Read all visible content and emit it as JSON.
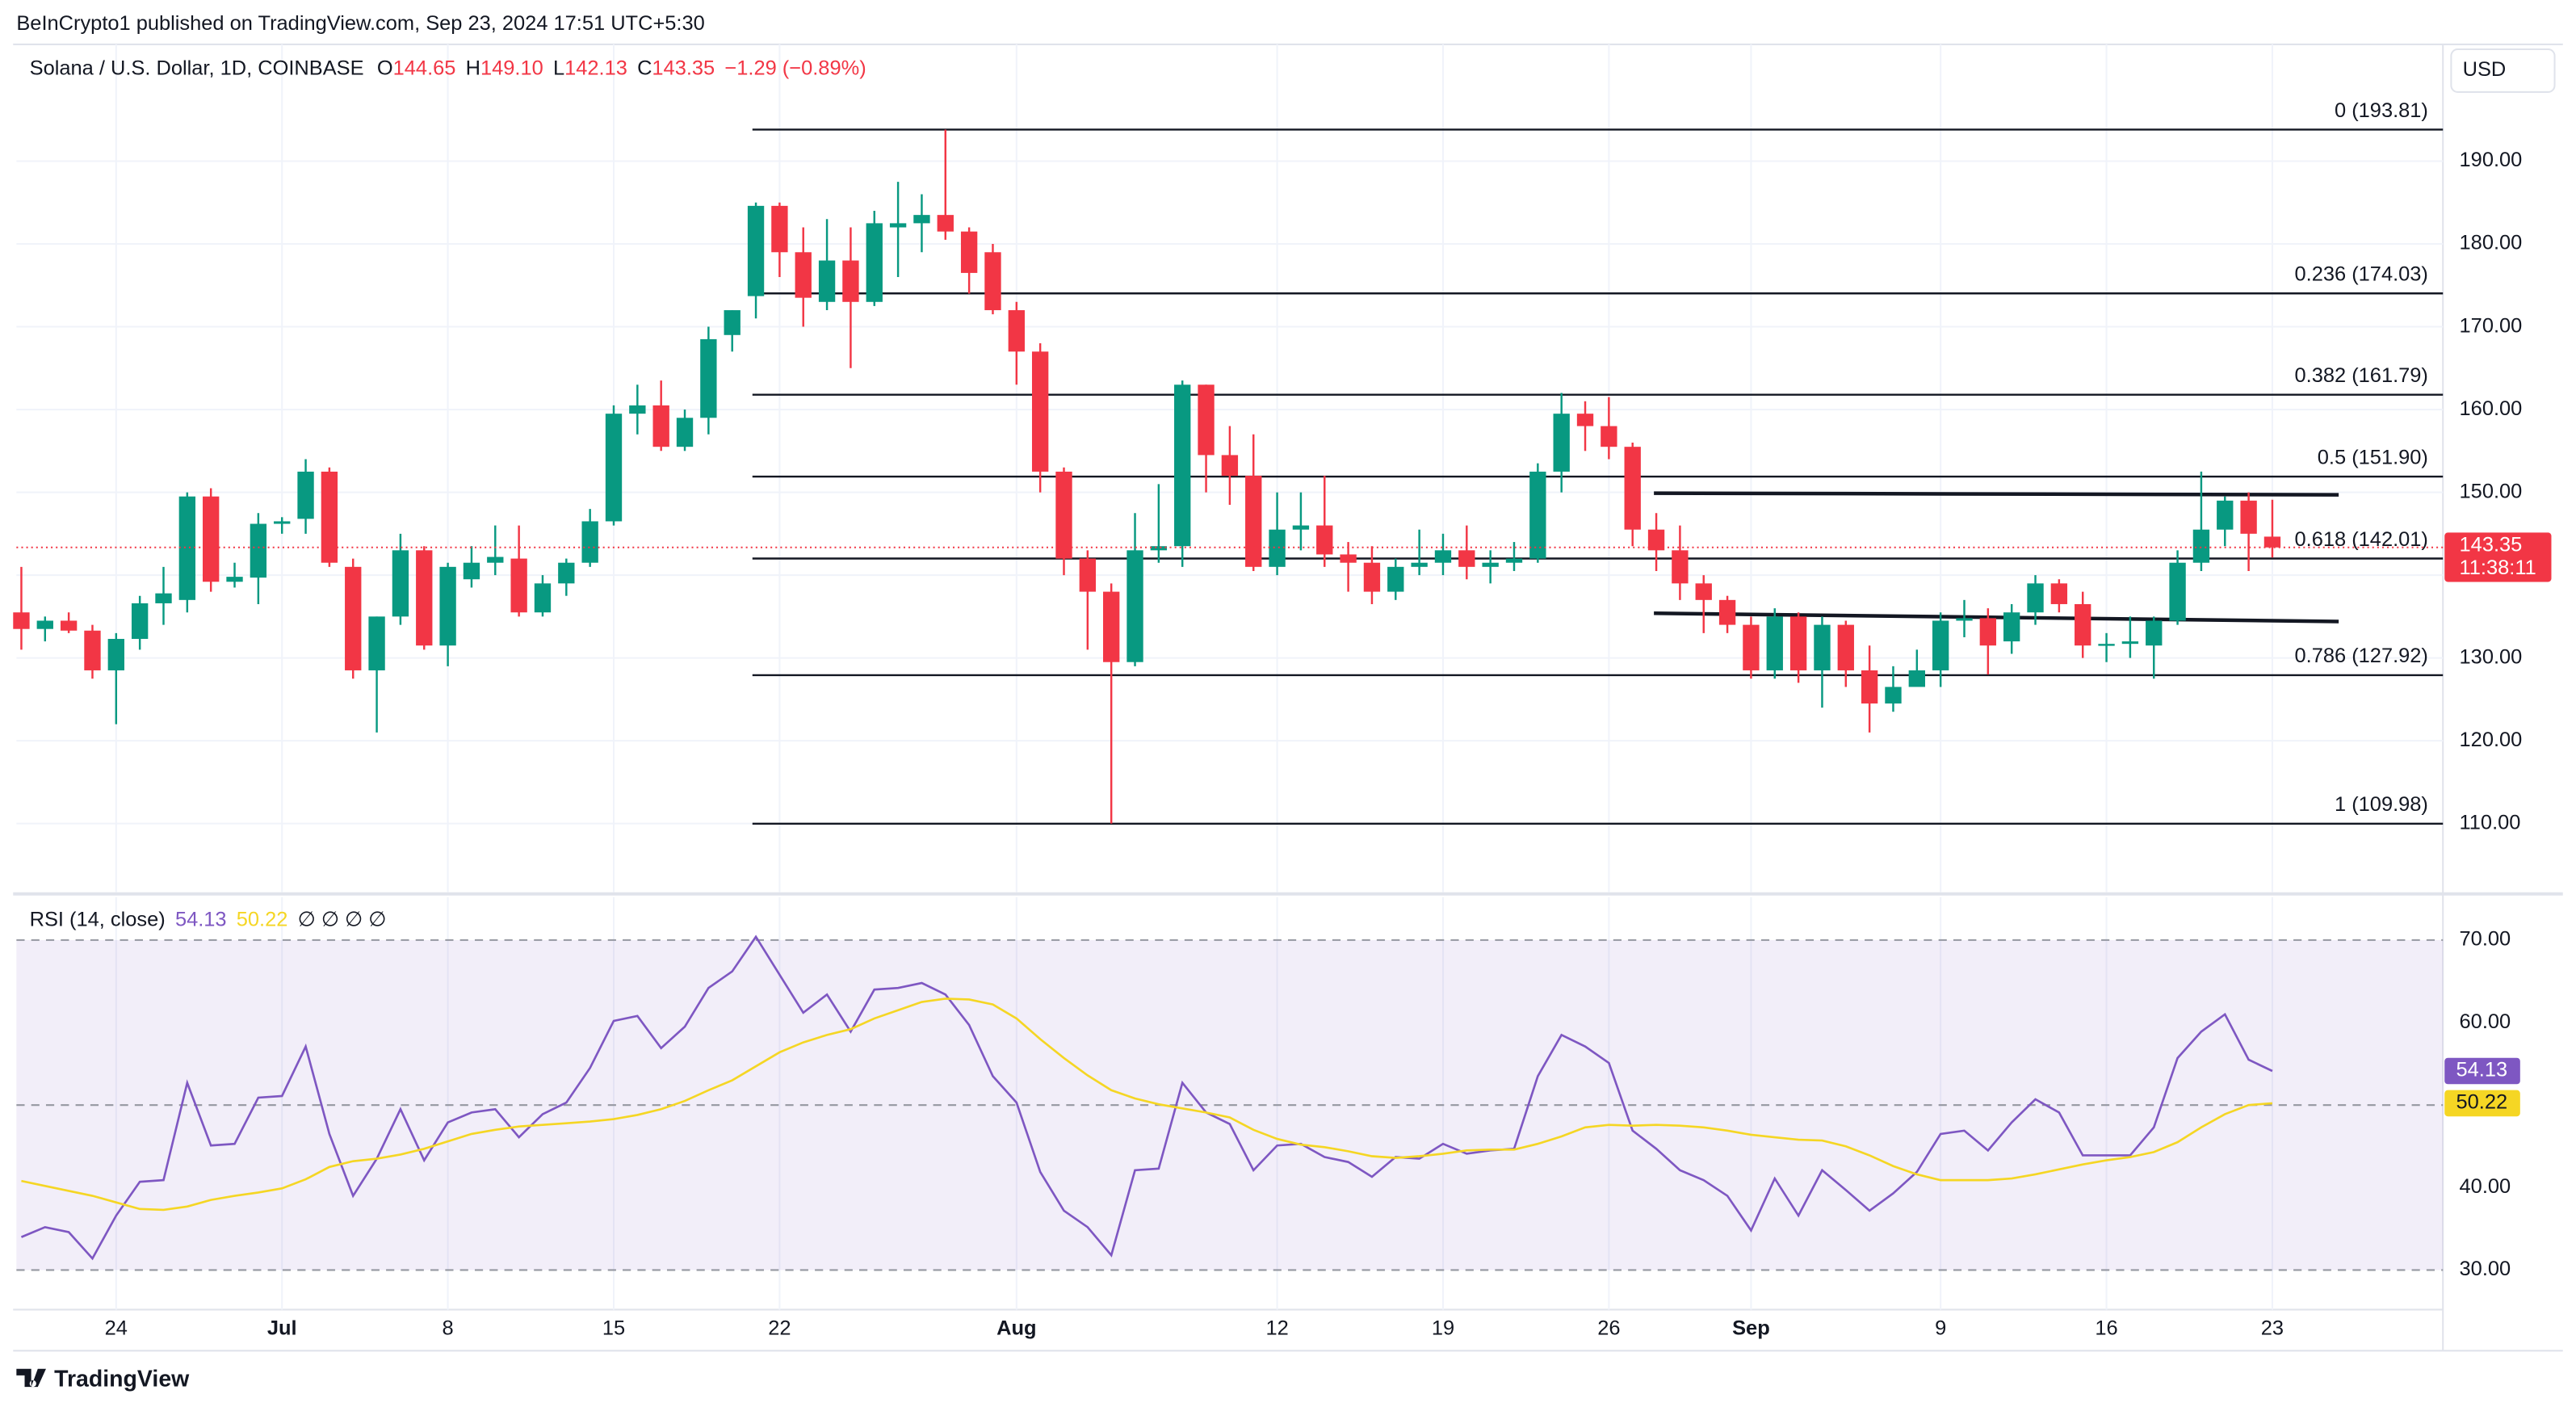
{
  "header": {
    "text": "BeInCrypto1 published on TradingView.com, Sep 23, 2024 17:51 UTC+5:30"
  },
  "footer": {
    "text": "TradingView"
  },
  "chart_data": [
    {
      "type": "candlestick",
      "title": "Solana / U.S. Dollar, 1D, COINBASE",
      "ohlc_legend": [
        {
          "key": "O",
          "value": "144.65"
        },
        {
          "key": "H",
          "value": "149.10"
        },
        {
          "key": "L",
          "value": "142.13"
        },
        {
          "key": "C",
          "value": "143.35"
        }
      ],
      "change": "−1.29 (−0.89%)",
      "currency": "USD",
      "last_price_label": "143.35",
      "countdown": "11:38:11",
      "up_color": "#089981",
      "down_color": "#f23645",
      "grid": true,
      "open": [
        135.5,
        133.5,
        134.5,
        133.3,
        128.5,
        132.3,
        136.6,
        137,
        149.5,
        139.2,
        139.7,
        146.2,
        146.8,
        152.5,
        141,
        128.5,
        135,
        143,
        131.5,
        139.5,
        141.5,
        142,
        135.5,
        139,
        141.5,
        146.5,
        159.5,
        160.5,
        155.5,
        159,
        169,
        173.7,
        184.6,
        179,
        173,
        178,
        173,
        182,
        182.5,
        183.5,
        181.5,
        179,
        172,
        167,
        152.5,
        142,
        138,
        129.5,
        143,
        143.5,
        163,
        154.5,
        152,
        141,
        145.5,
        146,
        142.5,
        141.5,
        138,
        141,
        141.5,
        143,
        141,
        141.5,
        142,
        152.5,
        159.5,
        158,
        155.5,
        145.5,
        143,
        139,
        137,
        134,
        128.5,
        135,
        128.5,
        134,
        128.5,
        124.5,
        126.5,
        128.5,
        134.5,
        134.8,
        132,
        135.5,
        139,
        136.5,
        131.5,
        131.7,
        131.5,
        134.5,
        141.5,
        145.5,
        149,
        144.65
      ],
      "high": [
        141,
        135,
        135.5,
        134,
        133,
        137.5,
        141,
        150,
        150.5,
        141.5,
        147.5,
        147,
        154,
        153,
        142,
        135,
        145,
        143.5,
        141.5,
        143.5,
        146,
        146,
        140,
        142,
        148,
        160.5,
        163,
        163.5,
        160,
        170,
        172,
        185,
        185,
        182,
        183,
        182,
        184,
        187.5,
        186,
        193.8,
        182,
        180,
        173,
        168,
        153,
        143,
        139,
        147.5,
        151,
        163.5,
        163,
        158,
        157,
        150,
        150,
        152,
        144,
        143.5,
        142,
        145.5,
        145,
        146,
        143,
        144,
        153.5,
        162,
        161,
        161.5,
        156,
        147.5,
        146,
        140,
        137.5,
        135,
        136,
        135.5,
        135,
        134.5,
        131.5,
        129,
        131,
        135.5,
        137,
        136,
        136.5,
        140,
        139.5,
        138,
        133,
        135,
        135,
        143,
        152.5,
        149.5,
        150,
        149.1
      ],
      "low": [
        131,
        132,
        133,
        127.5,
        122,
        131,
        134,
        135.5,
        138,
        138.5,
        136.5,
        145,
        145,
        141,
        127.5,
        121,
        134,
        131,
        129,
        138.5,
        140,
        135,
        135,
        137.5,
        141,
        146,
        157,
        155,
        155,
        157,
        167,
        171,
        176,
        170,
        172,
        165,
        172.5,
        176,
        179,
        180.5,
        174,
        171.5,
        163,
        150,
        140,
        131,
        110,
        129,
        141.5,
        141,
        150,
        148.5,
        140.5,
        140,
        143,
        141,
        138,
        136.5,
        137,
        140,
        140,
        139.5,
        139,
        140.5,
        141.5,
        150,
        155,
        154,
        143.5,
        140.5,
        137,
        133,
        133,
        127.5,
        127.5,
        127,
        124,
        126.5,
        121,
        123.5,
        127,
        126.5,
        132.5,
        128,
        130.5,
        134,
        135.5,
        130,
        129.5,
        130,
        127.5,
        134,
        140.5,
        143.5,
        140.5,
        142.13
      ],
      "close": [
        133.5,
        134.5,
        133.3,
        128.5,
        132.3,
        136.6,
        137.8,
        149.5,
        139.2,
        139.8,
        146.2,
        146.5,
        152.5,
        141.5,
        128.5,
        135,
        143,
        131.5,
        141,
        141.5,
        142.2,
        135.5,
        139,
        141.5,
        146.5,
        159.5,
        160.5,
        155.5,
        159,
        168.5,
        172,
        184.6,
        179,
        173.5,
        178,
        173,
        182.5,
        182.5,
        183.5,
        181.5,
        176.5,
        172,
        167,
        152.5,
        142,
        138,
        129.5,
        143,
        143.5,
        163,
        154.5,
        152,
        141,
        145.5,
        146,
        142.5,
        141.5,
        138,
        141,
        141.5,
        143,
        141,
        141.5,
        142,
        152.5,
        159.5,
        158,
        155.5,
        145.5,
        143,
        139,
        137,
        134,
        128.5,
        135,
        128.5,
        134,
        128.5,
        124.5,
        126.5,
        128.5,
        134.5,
        134.8,
        131.5,
        135.5,
        139,
        136.5,
        131.5,
        131.7,
        132,
        134.5,
        141.5,
        145.5,
        149,
        145,
        143.35
      ],
      "ylim": [
        101.7,
        204.5
      ],
      "yticks": [
        {
          "value": 110,
          "label": "110.00"
        },
        {
          "value": 120,
          "label": "120.00"
        },
        {
          "value": 130,
          "label": "130.00"
        },
        {
          "value": 140,
          "label": "140.00"
        },
        {
          "value": 150,
          "label": "150.00"
        },
        {
          "value": 160,
          "label": "160.00"
        },
        {
          "value": 170,
          "label": "170.00"
        },
        {
          "value": 180,
          "label": "180.00"
        },
        {
          "value": 190,
          "label": "190.00"
        }
      ],
      "fib_levels": [
        {
          "label": "0 (193.81)",
          "value": 193.81
        },
        {
          "label": "0.236 (174.03)",
          "value": 174.03
        },
        {
          "label": "0.382 (161.79)",
          "value": 161.79
        },
        {
          "label": "0.5 (151.90)",
          "value": 151.9
        },
        {
          "label": "0.618 (142.01)",
          "value": 142.01
        },
        {
          "label": "0.786 (127.92)",
          "value": 127.92
        },
        {
          "label": "1 (109.98)",
          "value": 109.98
        }
      ],
      "trendlines": [
        {
          "x": [
            68.9,
            97.8
          ],
          "y": [
            149.9,
            149.7
          ]
        },
        {
          "x": [
            68.9,
            97.8
          ],
          "y": [
            135.4,
            134.4
          ]
        }
      ]
    },
    {
      "type": "line",
      "title": "RSI (14, close)",
      "extra": "∅ ∅ ∅ ∅",
      "band_fill": "#7e57c2",
      "bands": [
        70,
        50,
        30
      ],
      "series": [
        {
          "color": "#7e57c2",
          "last_label": "54.13",
          "values": [
            34,
            35.2,
            34.6,
            31.4,
            36.6,
            40.7,
            40.9,
            52.7,
            45.1,
            45.3,
            50.9,
            51.1,
            57.1,
            46.5,
            39,
            43.5,
            49.5,
            43.3,
            47.9,
            49.1,
            49.5,
            46.1,
            48.9,
            50.3,
            54.5,
            60.2,
            60.8,
            56.9,
            59.5,
            64.2,
            66.2,
            70.4,
            65.8,
            61.2,
            63.4,
            58.9,
            64,
            64.2,
            64.8,
            63.4,
            59.7,
            53.5,
            50.3,
            41.9,
            37.2,
            35.2,
            31.8,
            42.1,
            42.3,
            52.7,
            49.1,
            47.7,
            42.1,
            45.1,
            45.3,
            43.7,
            43.1,
            41.3,
            43.7,
            43.5,
            45.3,
            44.1,
            44.5,
            44.7,
            53.5,
            58.5,
            57.1,
            55.1,
            46.9,
            44.7,
            42.1,
            40.9,
            39,
            34.8,
            41.1,
            36.6,
            42.1,
            39.7,
            37.2,
            39.3,
            41.9,
            46.5,
            46.9,
            44.5,
            47.9,
            50.7,
            49.1,
            43.9,
            43.9,
            43.9,
            47.3,
            55.7,
            58.9,
            61,
            55.5,
            54.13
          ]
        },
        {
          "color": "#f5d624",
          "last_label": "50.22",
          "values": [
            40.8,
            40.2,
            39.6,
            39,
            38.2,
            37.4,
            37.3,
            37.7,
            38.5,
            39,
            39.4,
            39.9,
            41,
            42.5,
            43.2,
            43.5,
            44,
            44.7,
            45.6,
            46.5,
            47,
            47.4,
            47.6,
            47.8,
            48,
            48.3,
            48.8,
            49.5,
            50.5,
            51.8,
            53,
            54.7,
            56.4,
            57.6,
            58.5,
            59.2,
            60.5,
            61.5,
            62.5,
            62.9,
            62.8,
            62.2,
            60.5,
            58,
            55.7,
            53.6,
            51.8,
            50.8,
            50.1,
            49.6,
            49.1,
            48.5,
            47,
            45.9,
            45.2,
            44.9,
            44.4,
            43.8,
            43.6,
            43.8,
            44.1,
            44.5,
            44.6,
            44.6,
            45.3,
            46.2,
            47.3,
            47.6,
            47.5,
            47.6,
            47.5,
            47.3,
            46.9,
            46.4,
            46.1,
            45.8,
            45.7,
            45,
            43.9,
            42.6,
            41.6,
            40.9,
            40.9,
            40.9,
            41.1,
            41.6,
            42.2,
            42.8,
            43.3,
            43.7,
            44.3,
            45.5,
            47.3,
            48.9,
            50,
            50.22
          ]
        }
      ],
      "ylim": [
        25.6,
        75
      ],
      "yticks": [
        {
          "value": 30,
          "label": "30.00"
        },
        {
          "value": 40,
          "label": "40.00"
        },
        {
          "value": 50,
          "label": "50.00"
        },
        {
          "value": 60,
          "label": "60.00"
        },
        {
          "value": 70,
          "label": "70.00"
        }
      ],
      "xlim": [
        -0.208,
        102.2
      ],
      "xticks": [
        {
          "value": 4,
          "label": "24"
        },
        {
          "value": 11,
          "label": "Jul"
        },
        {
          "value": 18,
          "label": "8"
        },
        {
          "value": 25,
          "label": "15"
        },
        {
          "value": 32,
          "label": "22"
        },
        {
          "value": 42,
          "label": "Aug"
        },
        {
          "value": 53,
          "label": "12"
        },
        {
          "value": 60,
          "label": "19"
        },
        {
          "value": 67,
          "label": "26"
        },
        {
          "value": 73,
          "label": "Sep"
        },
        {
          "value": 81,
          "label": "9"
        },
        {
          "value": 88,
          "label": "16"
        },
        {
          "value": 95,
          "label": "23"
        }
      ]
    }
  ]
}
